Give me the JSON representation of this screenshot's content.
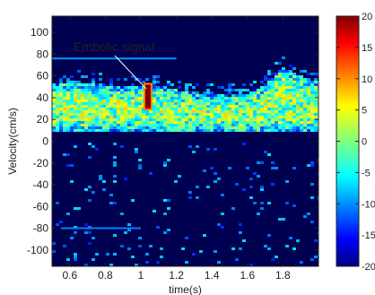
{
  "chart_data": {
    "type": "heatmap",
    "title": "",
    "xlabel": "time(s)",
    "ylabel": "Velocity(cm/s)",
    "xlim": [
      0.5,
      2.0
    ],
    "ylim": [
      -115,
      115
    ],
    "x_ticks": [
      0.6,
      0.8,
      1.0,
      1.2,
      1.4,
      1.6,
      1.8
    ],
    "x_tick_labels": [
      "0.6",
      "0.8",
      "1",
      "1.2",
      "1.4",
      "1.6",
      "1.8"
    ],
    "y_ticks": [
      100,
      80,
      60,
      40,
      20,
      0,
      -20,
      -40,
      -60,
      -80,
      -100
    ],
    "y_tick_labels": [
      "100",
      "80",
      "60",
      "40",
      "20",
      "0",
      "-20",
      "-40",
      "-60",
      "-80",
      "-100"
    ],
    "colormap": "jet",
    "grid": false,
    "colorbar": {
      "range": [
        -20,
        20
      ],
      "ticks": [
        20,
        15,
        10,
        5,
        0,
        -5,
        -10,
        -15,
        -20
      ],
      "tick_labels": [
        "20",
        "15",
        "10",
        "5",
        "0",
        "-5",
        "-10",
        "-15",
        "-20"
      ],
      "position": "right"
    },
    "background_level": -18,
    "signal_band": {
      "lower_velocity": 8,
      "upper_velocity": [
        [
          0.5,
          52
        ],
        [
          0.6,
          55
        ],
        [
          0.7,
          54
        ],
        [
          0.8,
          52
        ],
        [
          0.9,
          50
        ],
        [
          1.0,
          52
        ],
        [
          1.1,
          50
        ],
        [
          1.2,
          47
        ],
        [
          1.3,
          45
        ],
        [
          1.4,
          43
        ],
        [
          1.5,
          42
        ],
        [
          1.6,
          44
        ],
        [
          1.7,
          52
        ],
        [
          1.8,
          68
        ],
        [
          1.9,
          60
        ],
        [
          2.0,
          55
        ]
      ],
      "typical_level": 0
    },
    "embolic_signal": {
      "time": 1.04,
      "velocity_range": [
        30,
        52
      ],
      "peak_level": 20
    },
    "annotations": [
      {
        "text": "Embolic signal",
        "points_to": {
          "time": 1.04,
          "velocity": 45
        }
      }
    ]
  },
  "colors": {
    "background": "#000050",
    "axis": "#222222",
    "annotation_text": "#ffffff"
  }
}
